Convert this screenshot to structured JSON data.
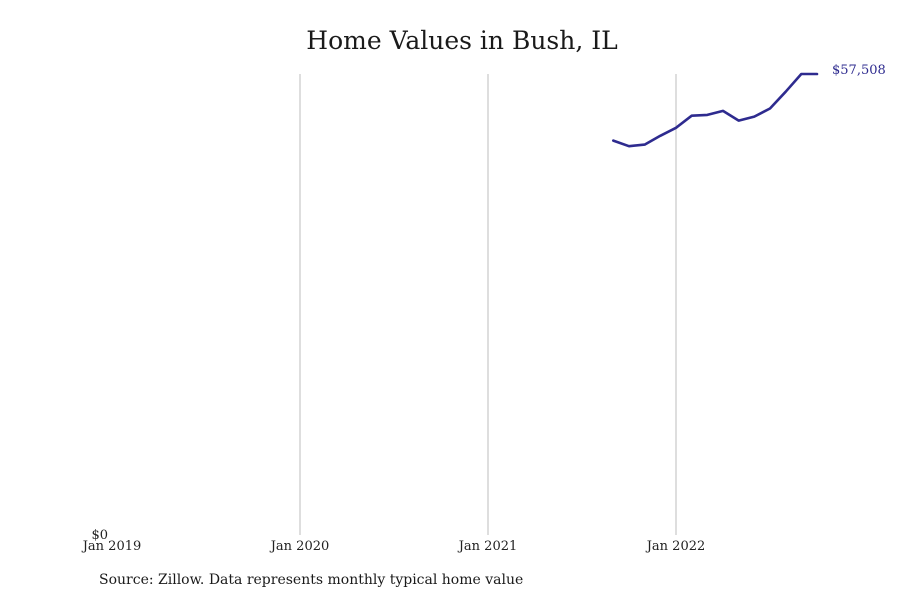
{
  "chart_data": {
    "type": "line",
    "title": "Home Values in Bush, IL",
    "xlabel": "",
    "ylabel": "",
    "x_ticks": [
      "Jan 2019",
      "Jan 2020",
      "Jan 2021",
      "Jan 2022"
    ],
    "y_ticks": [
      "$0"
    ],
    "ylim": [
      0,
      57508
    ],
    "grid": "vertical",
    "series": [
      {
        "x": [
          "2021-09",
          "2021-10",
          "2021-11",
          "2021-12",
          "2022-01",
          "2022-02",
          "2022-03",
          "2022-04",
          "2022-05",
          "2022-06",
          "2022-07",
          "2022-08",
          "2022-09",
          "2022-10"
        ],
        "values": [
          49200,
          48500,
          48700,
          49800,
          50800,
          52300,
          52400,
          52900,
          51700,
          52200,
          53200,
          55300,
          57508,
          57508
        ],
        "color": "#2e2b8f"
      }
    ],
    "end_label": "$57,508",
    "source": "Source: Zillow. Data represents monthly typical home value"
  }
}
